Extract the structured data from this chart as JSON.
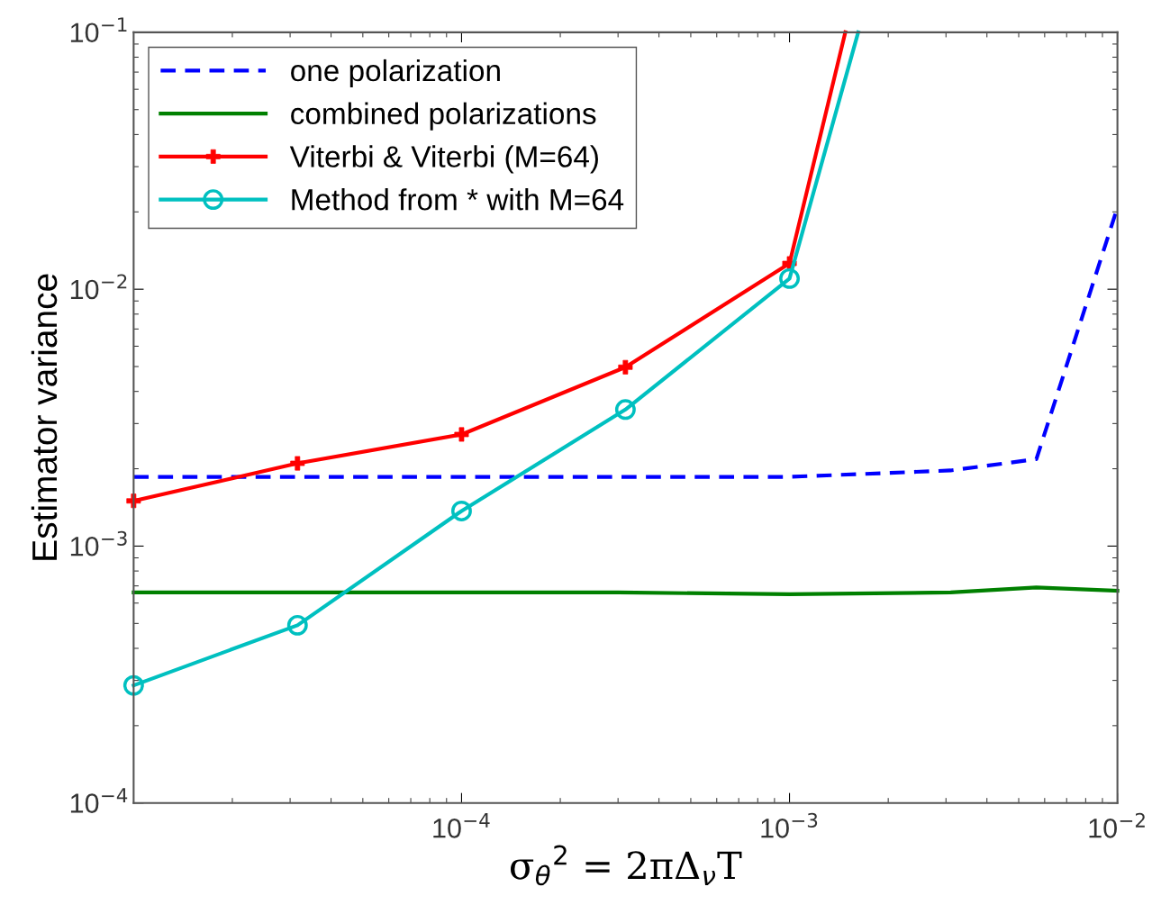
{
  "chart_data": {
    "type": "line",
    "xlabel": "σ$_{θ}$$^{2}$ = 2πΔ$_{ν}$T",
    "ylabel": "Estimator variance",
    "log": "xy",
    "grid": false,
    "legend": "top left",
    "xlim": [
      1e-05,
      0.01
    ],
    "ylim": [
      0.0001,
      0.1
    ],
    "xticks": [
      {
        "value": 0.0001,
        "label": "10$^{−4}$"
      },
      {
        "value": 0.001,
        "label": "10$^{−3}$"
      },
      {
        "value": 0.01,
        "label": "10$^{−2}$"
      }
    ],
    "yticks": [
      {
        "value": 0.0001,
        "label": "10$^{−4}$"
      },
      {
        "value": 0.001,
        "label": "10$^{−3}$"
      },
      {
        "value": 0.01,
        "label": "10$^{−2}$"
      },
      {
        "value": 0.1,
        "label": "10$^{−1}$"
      }
    ],
    "series": [
      {
        "name": "one polarization",
        "color": "#0000ff",
        "line_style": "dashed",
        "marker": "none",
        "x": [
          1e-05,
          0.001,
          0.0031,
          0.00566,
          0.01
        ],
        "values": [
          0.00186,
          0.00186,
          0.00197,
          0.00218,
          0.0208
        ]
      },
      {
        "name": "combined polarizations",
        "color": "#008000",
        "line_style": "solid",
        "marker": "none",
        "x": [
          1e-05,
          0.0003,
          0.001,
          0.0031,
          0.00566,
          0.01
        ],
        "values": [
          0.00066,
          0.00066,
          0.00065,
          0.00066,
          0.00069,
          0.00067
        ]
      },
      {
        "name": "Viterbi & Viterbi (M=64)",
        "color": "#ff0000",
        "line_style": "solid",
        "marker": "cross",
        "x": [
          1e-05,
          3.16e-05,
          0.0001,
          0.000316,
          0.001,
          0.00148
        ],
        "values": [
          0.0015,
          0.0021,
          0.00272,
          0.00497,
          0.0126,
          0.1
        ]
      },
      {
        "name": "Method from * with M=64",
        "color": "#00c0c0",
        "line_style": "solid",
        "marker": "circle",
        "x": [
          1e-05,
          3.16e-05,
          0.0001,
          0.000316,
          0.001,
          0.00162
        ],
        "values": [
          0.000287,
          0.000492,
          0.00137,
          0.0034,
          0.011,
          0.1
        ]
      }
    ]
  }
}
